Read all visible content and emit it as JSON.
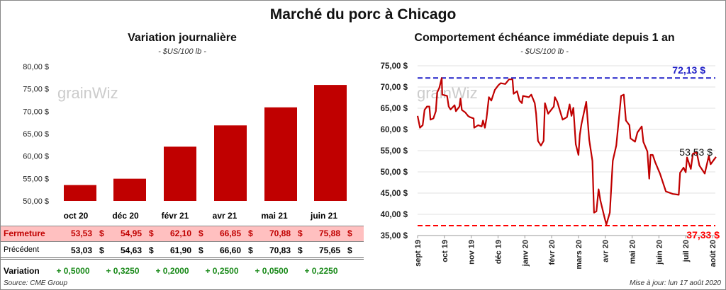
{
  "title": "Marché du porc à Chicago",
  "left": {
    "subtitle": "Variation journalière",
    "unit": "- $US/100 lb -",
    "watermark": "grainWiz",
    "table": {
      "columns": [
        "oct 20",
        "déc 20",
        "févr 21",
        "avr 21",
        "mai 21",
        "juin 21"
      ],
      "currency": "$",
      "rows": [
        {
          "label": "Fermeture",
          "values": [
            "53,53",
            "54,95",
            "62,10",
            "66,85",
            "70,88",
            "75,88"
          ]
        },
        {
          "label": "Précédent",
          "values": [
            "53,03",
            "54,63",
            "61,90",
            "66,60",
            "70,83",
            "75,65"
          ]
        },
        {
          "label": "Variation",
          "values": [
            "+ 0,5000",
            "+ 0,3250",
            "+ 0,2000",
            "+ 0,2500",
            "+ 0,0500",
            "+ 0,2250"
          ]
        }
      ]
    },
    "source": "Source: CME Group"
  },
  "right": {
    "subtitle": "Comportement  échéance immédiate depuis 1 an",
    "unit": "- $US/100 lb -",
    "watermark": "grainWiz",
    "updated": "Mise à jour: lun 17 août 2020"
  },
  "colors": {
    "bar": "#c00000",
    "line": "#c00000",
    "high": "#2020c8",
    "low": "#ff0000",
    "positive": "#1a8a1a",
    "highlight_row": "#ffc0c0"
  },
  "chart_data": [
    {
      "type": "bar",
      "categories": [
        "oct 20",
        "déc 20",
        "févr 21",
        "avr 21",
        "mai 21",
        "juin 21"
      ],
      "values": [
        53.53,
        54.95,
        62.1,
        66.85,
        70.88,
        75.88
      ],
      "ylim": [
        50,
        80
      ],
      "yticks": [
        "50,00 $",
        "55,00 $",
        "60,00 $",
        "65,00 $",
        "70,00 $",
        "75,00 $",
        "80,00 $"
      ],
      "grid": false
    },
    {
      "type": "line",
      "xticks": [
        "sept 19",
        "oct 19",
        "nov 19",
        "déc 19",
        "janv 20",
        "févr 20",
        "mars 20",
        "avr 20",
        "mai 20",
        "juin 20",
        "juil 20",
        "août 20"
      ],
      "yticks": [
        "35,00 $",
        "40,00 $",
        "45,00 $",
        "50,00 $",
        "55,00 $",
        "60,00 $",
        "65,00 $",
        "70,00 $",
        "75,00 $"
      ],
      "ylim": [
        35,
        75
      ],
      "grid": true,
      "high": {
        "value": 72.13,
        "label": "72,13 $"
      },
      "low": {
        "value": 37.33,
        "label": "37,33 $"
      },
      "last": {
        "value": 53.53,
        "label": "53,53 $"
      },
      "series": [
        {
          "points": [
            [
              0,
              63.2
            ],
            [
              0.09,
              60.4
            ],
            [
              0.19,
              61
            ],
            [
              0.26,
              64.6
            ],
            [
              0.35,
              65.4
            ],
            [
              0.44,
              65.4
            ],
            [
              0.48,
              62.3
            ],
            [
              0.59,
              62.6
            ],
            [
              0.68,
              64.3
            ],
            [
              0.73,
              68.7
            ],
            [
              0.81,
              69.8
            ],
            [
              0.9,
              72.1
            ],
            [
              0.92,
              68.2
            ],
            [
              1.1,
              67.9
            ],
            [
              1.16,
              65.4
            ],
            [
              1.23,
              64.7
            ],
            [
              1.38,
              65.7
            ],
            [
              1.43,
              64.3
            ],
            [
              1.56,
              65.4
            ],
            [
              1.6,
              67.3
            ],
            [
              1.65,
              64.6
            ],
            [
              1.78,
              64
            ],
            [
              1.88,
              63.2
            ],
            [
              1.95,
              62.9
            ],
            [
              2.09,
              62.6
            ],
            [
              2.11,
              60.4
            ],
            [
              2.26,
              61
            ],
            [
              2.39,
              60.7
            ],
            [
              2.44,
              62.1
            ],
            [
              2.51,
              60.4
            ],
            [
              2.57,
              62.6
            ],
            [
              2.66,
              67.6
            ],
            [
              2.75,
              66.8
            ],
            [
              2.88,
              69.3
            ],
            [
              3.01,
              70.4
            ],
            [
              3.1,
              70.9
            ],
            [
              3.27,
              70.7
            ],
            [
              3.41,
              71.8
            ],
            [
              3.54,
              71.8
            ],
            [
              3.58,
              68.4
            ],
            [
              3.71,
              69
            ],
            [
              3.8,
              66.8
            ],
            [
              3.89,
              66.2
            ],
            [
              3.93,
              67.9
            ],
            [
              4.15,
              67.6
            ],
            [
              4.24,
              68.2
            ],
            [
              4.37,
              66.2
            ],
            [
              4.42,
              63.7
            ],
            [
              4.49,
              57.3
            ],
            [
              4.6,
              56.2
            ],
            [
              4.7,
              57.3
            ],
            [
              4.75,
              66.2
            ],
            [
              4.87,
              63.7
            ],
            [
              5.08,
              65.4
            ],
            [
              5.12,
              67.6
            ],
            [
              5.21,
              66.5
            ],
            [
              5.3,
              64.6
            ],
            [
              5.41,
              62.3
            ],
            [
              5.57,
              62.9
            ],
            [
              5.67,
              65.9
            ],
            [
              5.74,
              63.2
            ],
            [
              5.81,
              65.1
            ],
            [
              5.9,
              56.5
            ],
            [
              6.0,
              54
            ],
            [
              6.05,
              58.7
            ],
            [
              6.11,
              61.2
            ],
            [
              6.29,
              66.5
            ],
            [
              6.4,
              57.6
            ],
            [
              6.52,
              52.6
            ],
            [
              6.58,
              40.4
            ],
            [
              6.67,
              40.7
            ],
            [
              6.75,
              45.9
            ],
            [
              6.82,
              43.2
            ],
            [
              6.97,
              39.3
            ],
            [
              7.04,
              37.6
            ],
            [
              7.17,
              40.4
            ],
            [
              7.28,
              52.6
            ],
            [
              7.41,
              56.2
            ],
            [
              7.59,
              67.9
            ],
            [
              7.69,
              68.2
            ],
            [
              7.77,
              62.1
            ],
            [
              7.9,
              61
            ],
            [
              7.94,
              57.9
            ],
            [
              8.11,
              57.1
            ],
            [
              8.2,
              59.3
            ],
            [
              8.36,
              60.7
            ],
            [
              8.42,
              57.1
            ],
            [
              8.57,
              54.8
            ],
            [
              8.64,
              48.4
            ],
            [
              8.69,
              54
            ],
            [
              8.77,
              54
            ],
            [
              8.86,
              52.3
            ],
            [
              9.04,
              49.6
            ],
            [
              9.26,
              45.4
            ],
            [
              9.52,
              44.8
            ],
            [
              9.74,
              44.6
            ],
            [
              9.79,
              49.8
            ],
            [
              9.92,
              51
            ],
            [
              10.0,
              49.9
            ],
            [
              10.05,
              53.4
            ],
            [
              10.19,
              50.7
            ],
            [
              10.27,
              54.3
            ],
            [
              10.41,
              54.6
            ],
            [
              10.51,
              51.5
            ],
            [
              10.71,
              49.6
            ],
            [
              10.86,
              53.7
            ],
            [
              10.93,
              51.8
            ],
            [
              11.13,
              53.53
            ]
          ]
        }
      ]
    }
  ]
}
